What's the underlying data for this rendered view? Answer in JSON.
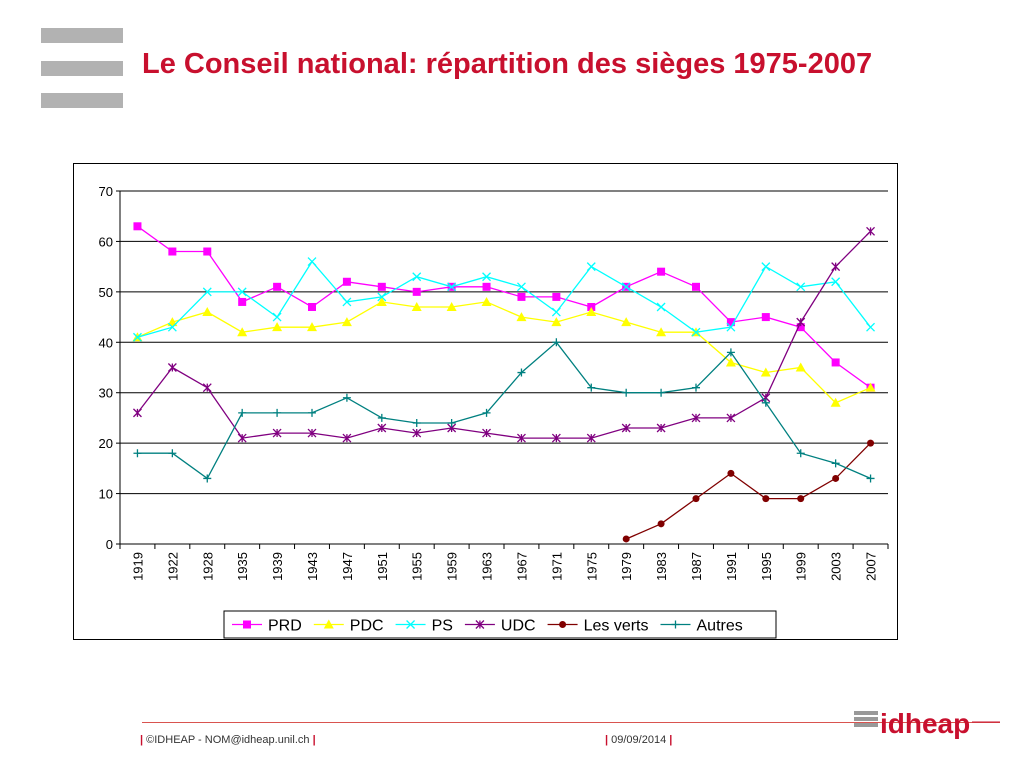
{
  "slide": {
    "title": "Le Conseil national: répartition des sièges 1975-2007"
  },
  "footer": {
    "left": "©IDHEAP - NOM@idheap.unil.ch",
    "right": "09/09/2014",
    "logo_text": "idheap"
  },
  "colors": {
    "title": "#c8102e",
    "accent": "#c8102e",
    "decor_bars": "#b2b2b2"
  },
  "chart_data": {
    "type": "line",
    "title": "",
    "xlabel": "",
    "ylabel": "",
    "ylim": [
      0,
      70
    ],
    "yticks": [
      0,
      10,
      20,
      30,
      40,
      50,
      60,
      70
    ],
    "grid": true,
    "legend_position": "bottom",
    "categories": [
      "1919",
      "1922",
      "1928",
      "1935",
      "1939",
      "1943",
      "1947",
      "1951",
      "1955",
      "1959",
      "1963",
      "1967",
      "1971",
      "1975",
      "1979",
      "1983",
      "1987",
      "1991",
      "1995",
      "1999",
      "2003",
      "2007"
    ],
    "series": [
      {
        "name": "PRD",
        "color": "#ff00ff",
        "marker": "square",
        "values": [
          63,
          58,
          58,
          48,
          51,
          47,
          52,
          51,
          50,
          51,
          51,
          49,
          49,
          47,
          51,
          54,
          51,
          44,
          45,
          43,
          36,
          31
        ]
      },
      {
        "name": "PDC",
        "color": "#ffff00",
        "marker": "triangle",
        "values": [
          41,
          44,
          46,
          42,
          43,
          43,
          44,
          48,
          47,
          47,
          48,
          45,
          44,
          46,
          44,
          42,
          42,
          36,
          34,
          35,
          28,
          31
        ]
      },
      {
        "name": "PS",
        "color": "#00ffff",
        "marker": "x",
        "values": [
          41,
          43,
          50,
          50,
          45,
          56,
          48,
          49,
          53,
          51,
          53,
          51,
          46,
          55,
          51,
          47,
          42,
          43,
          55,
          51,
          52,
          43
        ]
      },
      {
        "name": "UDC",
        "color": "#800080",
        "marker": "star",
        "values": [
          26,
          35,
          31,
          21,
          22,
          22,
          21,
          23,
          22,
          23,
          22,
          21,
          21,
          21,
          23,
          23,
          25,
          25,
          29,
          44,
          55,
          62
        ]
      },
      {
        "name": "Les verts",
        "color": "#800000",
        "marker": "circle",
        "values": [
          null,
          null,
          null,
          null,
          null,
          null,
          null,
          null,
          null,
          null,
          null,
          null,
          null,
          null,
          1,
          4,
          9,
          14,
          9,
          9,
          13,
          20
        ]
      },
      {
        "name": "Autres",
        "color": "#008080",
        "marker": "plus",
        "values": [
          18,
          18,
          13,
          26,
          26,
          26,
          29,
          25,
          24,
          24,
          26,
          34,
          40,
          31,
          30,
          30,
          31,
          38,
          28,
          18,
          16,
          13
        ]
      }
    ]
  }
}
